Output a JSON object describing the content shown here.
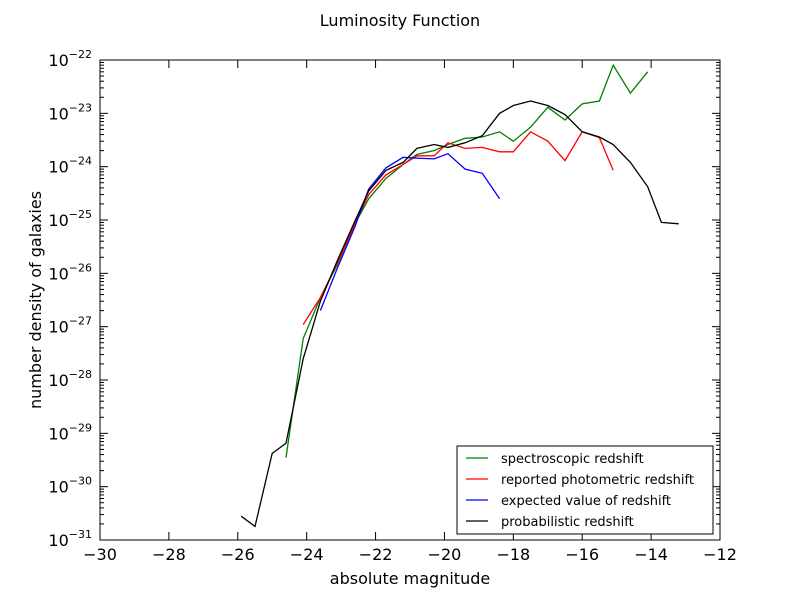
{
  "chart_data": {
    "type": "line",
    "title": "Luminosity Function",
    "xlabel": "absolute magnitude",
    "ylabel": "number density of galaxies",
    "xlim": [
      -30,
      -12
    ],
    "ylim": [
      1e-31,
      1e-22
    ],
    "yscale": "log",
    "x_ticks": [
      -30,
      -28,
      -26,
      -24,
      -22,
      -20,
      -18,
      -16,
      -14,
      -12
    ],
    "x_tick_labels": [
      "−30",
      "−28",
      "−26",
      "−24",
      "−22",
      "−20",
      "−18",
      "−16",
      "−14",
      "−12"
    ],
    "y_tick_exponents": [
      -31,
      -30,
      -29,
      -28,
      -27,
      -26,
      -25,
      -24,
      -23,
      -22
    ],
    "y_tick_base": "10",
    "grid": false,
    "legend_position": "lower-right",
    "series": [
      {
        "name": "spectroscopic redshift",
        "color": "#008000",
        "x": [
          -24.6,
          -24.1,
          -23.6,
          -23.1,
          -22.6,
          -22.2,
          -21.7,
          -21.2,
          -20.8,
          -20.3,
          -19.9,
          -19.4,
          -18.9,
          -18.4,
          -18.0,
          -17.5,
          -17.0,
          -16.5,
          -16.0,
          -15.5,
          -15.1,
          -14.6,
          -14.1
        ],
        "y": [
          3.5e-30,
          6e-28,
          3.5e-27,
          1.5e-26,
          8.5e-26,
          2.5e-25,
          6e-25,
          1.1e-24,
          1.7e-24,
          2e-24,
          2.6e-24,
          3.4e-24,
          3.6e-24,
          4.5e-24,
          3e-24,
          5.5e-24,
          1.3e-23,
          7.5e-24,
          1.5e-23,
          1.7e-23,
          8e-23,
          2.4e-23,
          6e-23
        ]
      },
      {
        "name": "reported photometric redshift",
        "color": "#ff0000",
        "x": [
          -24.1,
          -23.6,
          -23.1,
          -22.6,
          -22.2,
          -21.7,
          -21.2,
          -20.8,
          -20.3,
          -19.9,
          -19.4,
          -18.9,
          -18.4,
          -18.0,
          -17.5,
          -17.0,
          -16.5,
          -16.0,
          -15.5,
          -15.1
        ],
        "y": [
          1.1e-27,
          3.5e-27,
          1.6e-26,
          8.5e-26,
          3e-25,
          7e-25,
          1.1e-24,
          1.6e-24,
          1.6e-24,
          2.8e-24,
          2.2e-24,
          2.3e-24,
          1.9e-24,
          1.9e-24,
          4.5e-24,
          3e-24,
          1.3e-24,
          4.5e-24,
          3.5e-24,
          8.5e-25
        ]
      },
      {
        "name": "expected value of redshift",
        "color": "#0000ff",
        "x": [
          -23.6,
          -23.1,
          -22.6,
          -22.2,
          -21.7,
          -21.2,
          -20.8,
          -20.3,
          -19.9,
          -19.4,
          -18.9,
          -18.4
        ],
        "y": [
          2e-27,
          1.3e-26,
          7.5e-26,
          3.8e-25,
          9.5e-25,
          1.5e-24,
          1.45e-24,
          1.4e-24,
          1.75e-24,
          9e-25,
          7.5e-25,
          2.5e-25
        ]
      },
      {
        "name": "probabilistic redshift",
        "color": "#000000",
        "x": [
          -25.9,
          -25.5,
          -25.0,
          -24.6,
          -24.1,
          -23.6,
          -23.1,
          -22.6,
          -22.2,
          -21.7,
          -21.2,
          -20.8,
          -20.3,
          -19.9,
          -19.4,
          -18.9,
          -18.4,
          -18.0,
          -17.5,
          -17.0,
          -16.5,
          -16.0,
          -15.5,
          -15.1,
          -14.6,
          -14.1,
          -13.7,
          -13.2
        ],
        "y": [
          2.8e-31,
          1.8e-31,
          4.2e-30,
          6.5e-30,
          2.5e-28,
          3e-27,
          1.8e-26,
          9.5e-26,
          3.5e-25,
          8.5e-25,
          1.2e-24,
          2.2e-24,
          2.6e-24,
          2.3e-24,
          2.8e-24,
          3.8e-24,
          1e-23,
          1.4e-23,
          1.7e-23,
          1.4e-23,
          9.5e-24,
          4.5e-24,
          3.6e-24,
          2.6e-24,
          1.2e-24,
          4.2e-25,
          9e-26,
          8.5e-26
        ]
      }
    ]
  }
}
